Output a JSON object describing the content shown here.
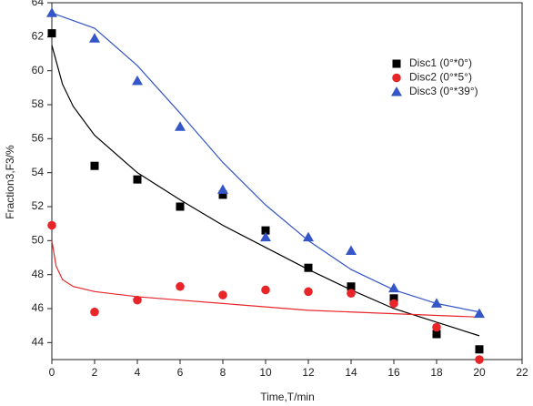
{
  "chart_data": {
    "type": "scatter",
    "x_label": "Time,T/min",
    "y_label": "Fraction3,F3/%",
    "x": [
      0,
      2,
      4,
      6,
      8,
      10,
      12,
      14,
      16,
      18,
      20
    ],
    "xlim": [
      0,
      22
    ],
    "xticks": [
      0,
      2,
      4,
      6,
      8,
      10,
      12,
      14,
      16,
      18,
      20,
      22
    ],
    "ylim": [
      43,
      64
    ],
    "yticks": [
      44,
      46,
      48,
      50,
      52,
      54,
      56,
      58,
      60,
      62,
      64
    ],
    "grid": false,
    "legend": "upper right",
    "series": [
      {
        "name": "Disc1 (0°*0°)",
        "color": "#000000",
        "marker": "square",
        "values": [
          62.2,
          54.4,
          53.6,
          52.0,
          52.7,
          50.6,
          48.4,
          47.3,
          46.6,
          44.5,
          43.6
        ],
        "fit": {
          "x": [
            0,
            0.5,
            1,
            2,
            4,
            6,
            8,
            10,
            12,
            14,
            16,
            18,
            20
          ],
          "values": [
            61.5,
            59.2,
            57.9,
            56.2,
            54.0,
            52.4,
            50.9,
            49.6,
            48.3,
            47.1,
            46.0,
            45.2,
            44.4
          ]
        }
      },
      {
        "name": "Disc2 (0°*5°)",
        "color": "#e8262a",
        "marker": "circle",
        "values": [
          50.9,
          45.8,
          46.5,
          47.3,
          46.8,
          47.1,
          47.0,
          46.9,
          46.3,
          44.9,
          43.0
        ],
        "fit": {
          "x": [
            0,
            0.2,
            0.5,
            1,
            2,
            4,
            6,
            8,
            10,
            12,
            14,
            16,
            18,
            20
          ],
          "values": [
            50.0,
            48.5,
            47.7,
            47.3,
            47.0,
            46.7,
            46.5,
            46.3,
            46.1,
            45.9,
            45.8,
            45.7,
            45.6,
            45.5
          ]
        }
      },
      {
        "name": "Disc3 (0°*39°)",
        "color": "#3556c8",
        "marker": "triangle",
        "values": [
          63.4,
          61.9,
          59.4,
          56.7,
          53.0,
          50.2,
          50.2,
          49.4,
          47.2,
          46.3,
          45.7
        ],
        "fit": {
          "x": [
            0,
            2,
            4,
            6,
            8,
            10,
            12,
            14,
            16,
            18,
            20
          ],
          "values": [
            63.4,
            62.5,
            60.3,
            57.5,
            54.6,
            52.1,
            50.0,
            48.3,
            47.1,
            46.3,
            45.8
          ]
        }
      }
    ]
  }
}
